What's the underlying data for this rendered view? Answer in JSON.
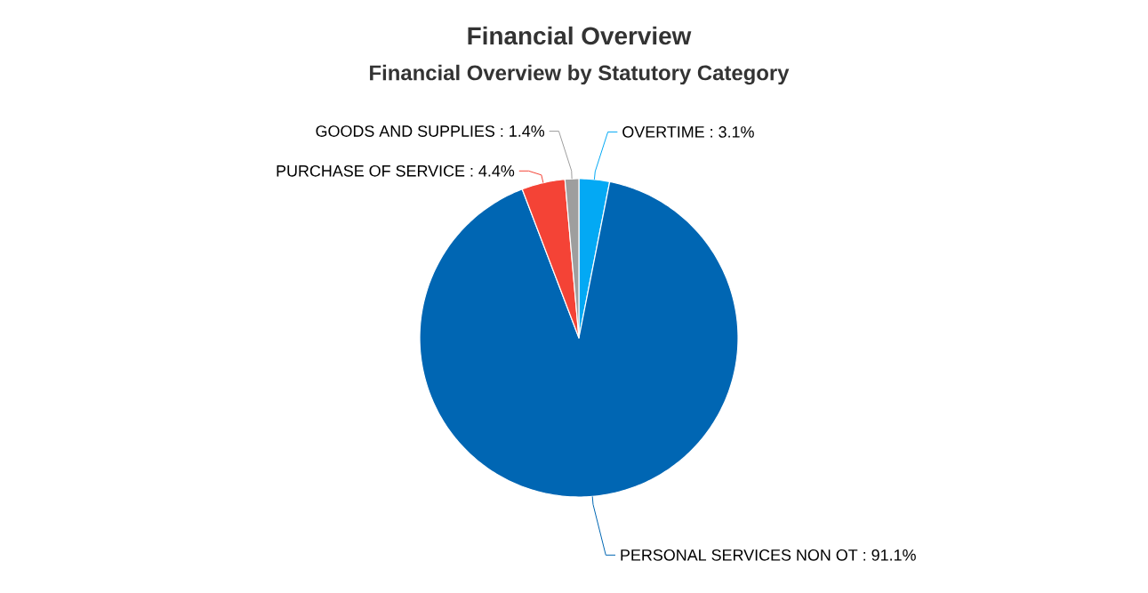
{
  "chart_data": {
    "type": "pie",
    "title": "Financial Overview",
    "subtitle": "Financial Overview by Statutory Category",
    "categories": [
      "OVERTIME : 3.1%",
      "PERSONAL SERVICES NON OT : 91.1%",
      "PURCHASE OF SERVICE : 4.4%",
      "GOODS AND SUPPLIES : 1.4%"
    ],
    "values": [
      3.1,
      91.1,
      4.4,
      1.4
    ],
    "colors": [
      "#03a9f4",
      "#0066b3",
      "#f44336",
      "#9e9e9e"
    ]
  }
}
